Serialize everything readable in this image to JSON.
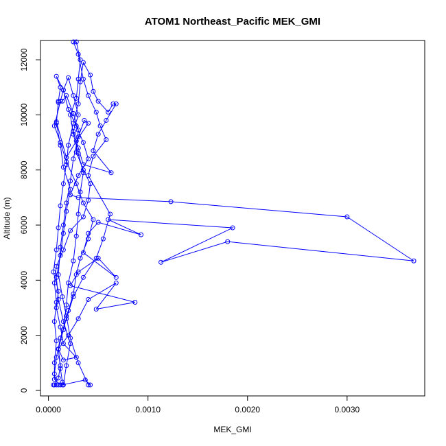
{
  "chart_data": {
    "type": "line",
    "title": "ATOM1 Northeast_Pacific MEK_GMI",
    "xlabel": "MEK_GMI",
    "ylabel": "Altitude (m)",
    "xlim": [
      -8e-05,
      0.00378
    ],
    "ylim": [
      -200,
      12700
    ],
    "xticks": [
      0.0,
      0.001,
      0.002,
      0.003
    ],
    "xtick_labels": [
      "0.0000",
      "0.0010",
      "0.0020",
      "0.0030"
    ],
    "yticks": [
      0,
      2000,
      4000,
      6000,
      8000,
      10000,
      12000
    ],
    "ytick_labels": [
      "0",
      "2000",
      "4000",
      "6000",
      "8000",
      "10000",
      "12000"
    ],
    "grid": false,
    "series": [
      {
        "color": "#0000ff",
        "marker": "open-circle",
        "points": [
          [
            6e-05,
            200
          ],
          [
            0.0001,
            450
          ],
          [
            0.00012,
            900
          ],
          [
            0.0001,
            1500
          ],
          [
            0.00015,
            2200
          ],
          [
            0.00018,
            3100
          ],
          [
            0.0002,
            3900
          ],
          [
            0.00025,
            4700
          ],
          [
            0.00028,
            5600
          ],
          [
            0.0003,
            6400
          ],
          [
            0.00032,
            7200
          ],
          [
            0.00035,
            7900
          ],
          [
            0.0003,
            8600
          ],
          [
            0.00025,
            9300
          ],
          [
            0.00022,
            10000
          ],
          [
            0.00028,
            10600
          ],
          [
            0.0003,
            11300
          ],
          [
            0.00032,
            12000
          ],
          [
            0.00028,
            12650
          ],
          [
            0.00025,
            12650
          ],
          [
            0.0003,
            12200
          ],
          [
            0.00035,
            11300
          ],
          [
            0.0004,
            10700
          ],
          [
            0.00048,
            10100
          ],
          [
            0.00052,
            9600
          ],
          [
            0.00058,
            9100
          ],
          [
            0.00045,
            8500
          ],
          [
            0.0004,
            7800
          ],
          [
            0.00062,
            6400
          ],
          [
            0.00055,
            5500
          ],
          [
            0.00048,
            4800
          ],
          [
            0.00035,
            4100
          ],
          [
            0.00025,
            3400
          ],
          [
            0.00018,
            2600
          ],
          [
            0.00012,
            1900
          ],
          [
            8e-05,
            1200
          ],
          [
            6e-05,
            600
          ],
          [
            8e-05,
            200
          ],
          [
            0.00015,
            200
          ],
          [
            0.00018,
            900
          ],
          [
            0.00022,
            1700
          ],
          [
            0.00015,
            2500
          ],
          [
            0.0001,
            3300
          ],
          [
            8e-05,
            4100
          ],
          [
            0.00012,
            4900
          ],
          [
            0.00015,
            5700
          ],
          [
            0.00018,
            6500
          ],
          [
            0.00022,
            7300
          ],
          [
            0.00015,
            8100
          ],
          [
            0.00012,
            8900
          ],
          [
            8e-05,
            9700
          ],
          [
            0.0001,
            10500
          ],
          [
            0.00012,
            11000
          ],
          [
            8e-05,
            11400
          ],
          [
            0.00015,
            10900
          ],
          [
            0.0002,
            10200
          ],
          [
            0.00028,
            9600
          ],
          [
            0.00035,
            9000
          ],
          [
            0.0004,
            8400
          ],
          [
            0.0003,
            7800
          ],
          [
            0.00022,
            7100
          ],
          [
            0.0003,
            7000
          ],
          [
            0.00123,
            6850
          ],
          [
            0.003,
            6300
          ],
          [
            0.00367,
            4700
          ],
          [
            0.0018,
            5400
          ],
          [
            0.00113,
            4650
          ],
          [
            0.00185,
            5900
          ],
          [
            0.0006,
            6200
          ],
          [
            0.00093,
            5650
          ],
          [
            0.0005,
            6100
          ],
          [
            0.0004,
            5700
          ],
          [
            0.00035,
            5000
          ],
          [
            0.00068,
            4100
          ],
          [
            0.0005,
            4800
          ],
          [
            0.0003,
            4300
          ],
          [
            0.00022,
            3800
          ],
          [
            0.00087,
            3200
          ],
          [
            0.00048,
            2950
          ],
          [
            0.00068,
            3900
          ],
          [
            0.0004,
            3300
          ],
          [
            0.0003,
            2600
          ],
          [
            0.0002,
            2000
          ],
          [
            0.0001,
            1500
          ],
          [
            0.00015,
            1100
          ],
          [
            0.00028,
            1200
          ],
          [
            0.00015,
            1700
          ],
          [
            0.00012,
            2300
          ],
          [
            8e-05,
            3000
          ],
          [
            0.0001,
            3600
          ],
          [
            5e-05,
            4300
          ],
          [
            8e-05,
            5100
          ],
          [
            0.0001,
            5900
          ],
          [
            0.00012,
            6700
          ],
          [
            0.00015,
            7500
          ],
          [
            0.00018,
            8200
          ],
          [
            0.0002,
            8900
          ],
          [
            0.00025,
            9700
          ],
          [
            0.0003,
            10400
          ],
          [
            0.00032,
            11200
          ],
          [
            0.00035,
            11900
          ],
          [
            0.00042,
            11450
          ],
          [
            0.00045,
            10850
          ],
          [
            0.0005,
            10500
          ],
          [
            0.0006,
            10100
          ],
          [
            0.00065,
            10400
          ],
          [
            0.00068,
            10400
          ],
          [
            0.00058,
            9800
          ],
          [
            0.0005,
            9300
          ],
          [
            0.00045,
            8700
          ],
          [
            0.00063,
            7900
          ],
          [
            0.00035,
            8200
          ],
          [
            0.0003,
            8800
          ],
          [
            0.00025,
            9400
          ],
          [
            0.0003,
            10000
          ],
          [
            0.00025,
            10700
          ],
          [
            0.0002,
            11350
          ],
          [
            0.00015,
            10900
          ],
          [
            0.00012,
            10500
          ],
          [
            6e-05,
            9600
          ],
          [
            0.00012,
            9000
          ],
          [
            0.00018,
            8300
          ],
          [
            0.00028,
            7500
          ],
          [
            0.00035,
            6800
          ],
          [
            0.00045,
            6200
          ],
          [
            0.0004,
            5500
          ],
          [
            0.00032,
            4800
          ],
          [
            0.00028,
            4200
          ],
          [
            0.00025,
            3500
          ],
          [
            0.0002,
            2900
          ],
          [
            0.00015,
            2200
          ],
          [
            0.0001,
            1500
          ],
          [
            0.00012,
            800
          ],
          [
            0.00014,
            300
          ],
          [
            0.00014,
            200
          ],
          [
            0.00037,
            380
          ],
          [
            0.00042,
            200
          ],
          [
            0.0004,
            200
          ],
          [
            0.0003,
            1000
          ],
          [
            0.00022,
            1900
          ],
          [
            0.00018,
            2700
          ],
          [
            0.00014,
            3400
          ],
          [
            0.0001,
            4200
          ],
          [
            0.00012,
            5200
          ],
          [
            0.00015,
            6000
          ],
          [
            0.00018,
            6800
          ],
          [
            0.00022,
            7600
          ],
          [
            0.00025,
            8400
          ],
          [
            0.0003,
            9200
          ],
          [
            0.00036,
            9800
          ],
          [
            0.0004,
            9700
          ],
          [
            0.00028,
            9050
          ],
          [
            0.00018,
            8450
          ],
          [
            8e-05,
            9750
          ],
          [
            0.0001,
            10450
          ],
          [
            0.00014,
            10500
          ],
          [
            0.00018,
            10700
          ],
          [
            0.00025,
            10050
          ],
          [
            0.0003,
            9450
          ],
          [
            0.00028,
            8650
          ],
          [
            0.00035,
            8000
          ],
          [
            0.00042,
            7500
          ],
          [
            0.0004,
            6900
          ],
          [
            0.00035,
            6300
          ],
          [
            0.00022,
            5800
          ],
          [
            0.00015,
            5100
          ],
          [
            8e-05,
            4500
          ],
          [
            6e-05,
            3900
          ],
          [
            8e-05,
            3200
          ],
          [
            6e-05,
            2500
          ],
          [
            8e-05,
            1800
          ],
          [
            6e-05,
            1000
          ],
          [
            6e-05,
            400
          ],
          [
            0.00012,
            200
          ],
          [
            0.0001,
            200
          ],
          [
            5e-05,
            200
          ]
        ]
      }
    ]
  }
}
